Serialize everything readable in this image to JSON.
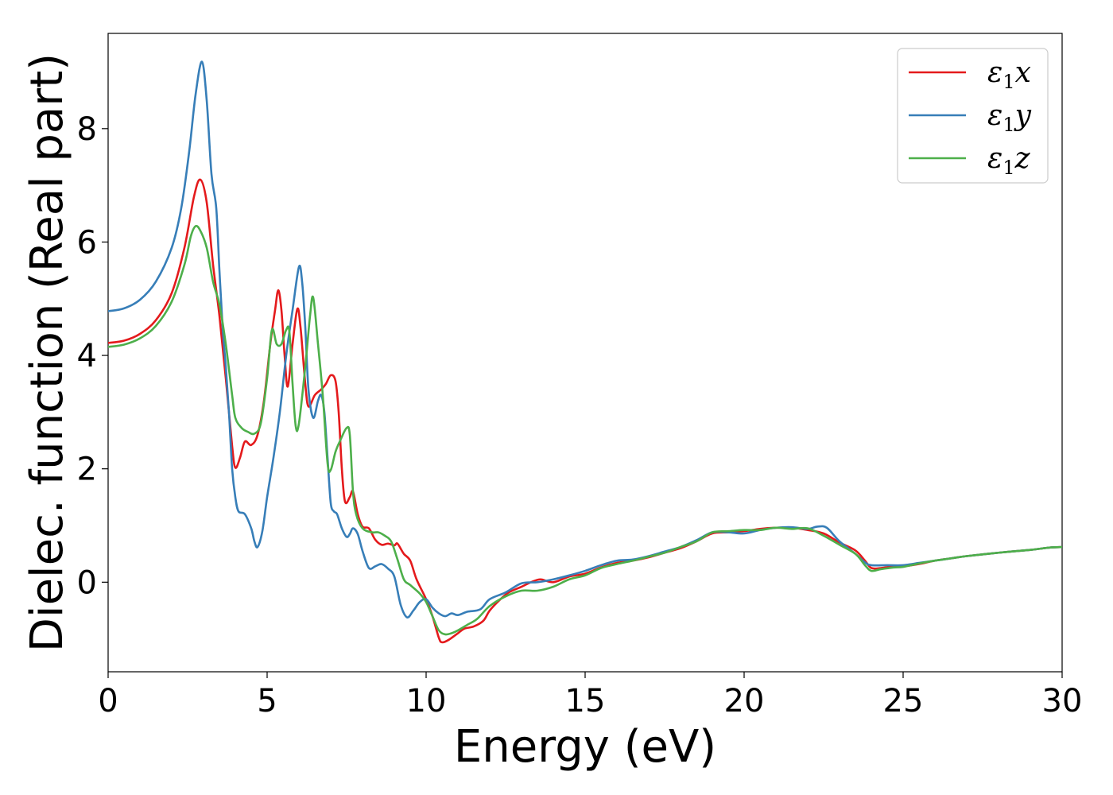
{
  "chart_data": {
    "type": "line",
    "title": "",
    "xlabel": "Energy (eV)",
    "ylabel": "Dielec. function (Real part)",
    "xlim": [
      0,
      30
    ],
    "ylim": [
      -1.58,
      9.68
    ],
    "xticks": [
      0,
      5,
      10,
      15,
      20,
      25,
      30
    ],
    "yticks": [
      0,
      2,
      4,
      6,
      8
    ],
    "grid": false,
    "legend_position": "top-right",
    "series": [
      {
        "name": "ε1x",
        "legend": {
          "base": "ε",
          "sub": "1",
          "axis": "x"
        },
        "color": "#e41a1c",
        "points": [
          [
            0,
            4.22
          ],
          [
            0.5,
            4.26
          ],
          [
            1.0,
            4.38
          ],
          [
            1.5,
            4.62
          ],
          [
            2.0,
            5.1
          ],
          [
            2.4,
            5.9
          ],
          [
            2.7,
            6.8
          ],
          [
            2.9,
            7.1
          ],
          [
            3.1,
            6.7
          ],
          [
            3.3,
            5.6
          ],
          [
            3.5,
            4.7
          ],
          [
            3.7,
            3.6
          ],
          [
            3.9,
            2.4
          ],
          [
            4.0,
            2.02
          ],
          [
            4.15,
            2.2
          ],
          [
            4.3,
            2.48
          ],
          [
            4.5,
            2.42
          ],
          [
            4.7,
            2.6
          ],
          [
            4.9,
            3.2
          ],
          [
            5.1,
            4.2
          ],
          [
            5.25,
            4.8
          ],
          [
            5.35,
            5.15
          ],
          [
            5.45,
            4.8
          ],
          [
            5.55,
            4.0
          ],
          [
            5.65,
            3.45
          ],
          [
            5.8,
            4.2
          ],
          [
            5.95,
            4.82
          ],
          [
            6.05,
            4.5
          ],
          [
            6.2,
            3.5
          ],
          [
            6.3,
            3.1
          ],
          [
            6.5,
            3.3
          ],
          [
            6.7,
            3.4
          ],
          [
            6.85,
            3.5
          ],
          [
            7.0,
            3.65
          ],
          [
            7.15,
            3.55
          ],
          [
            7.25,
            3.0
          ],
          [
            7.35,
            2.0
          ],
          [
            7.45,
            1.42
          ],
          [
            7.6,
            1.5
          ],
          [
            7.7,
            1.6
          ],
          [
            7.85,
            1.2
          ],
          [
            8.0,
            0.98
          ],
          [
            8.2,
            0.95
          ],
          [
            8.4,
            0.75
          ],
          [
            8.6,
            0.66
          ],
          [
            8.8,
            0.68
          ],
          [
            9.0,
            0.65
          ],
          [
            9.1,
            0.68
          ],
          [
            9.3,
            0.5
          ],
          [
            9.5,
            0.38
          ],
          [
            9.7,
            0.05
          ],
          [
            10.0,
            -0.3
          ],
          [
            10.2,
            -0.6
          ],
          [
            10.4,
            -0.98
          ],
          [
            10.5,
            -1.06
          ],
          [
            10.7,
            -1.02
          ],
          [
            11.0,
            -0.9
          ],
          [
            11.2,
            -0.82
          ],
          [
            11.5,
            -0.78
          ],
          [
            11.8,
            -0.68
          ],
          [
            12.0,
            -0.5
          ],
          [
            12.3,
            -0.32
          ],
          [
            12.6,
            -0.18
          ],
          [
            13.0,
            -0.08
          ],
          [
            13.3,
            0.0
          ],
          [
            13.6,
            0.05
          ],
          [
            14.0,
            0.0
          ],
          [
            14.5,
            0.1
          ],
          [
            15.0,
            0.15
          ],
          [
            15.5,
            0.26
          ],
          [
            16.0,
            0.34
          ],
          [
            16.5,
            0.38
          ],
          [
            17.0,
            0.44
          ],
          [
            17.5,
            0.52
          ],
          [
            18.0,
            0.6
          ],
          [
            18.5,
            0.72
          ],
          [
            19.0,
            0.86
          ],
          [
            19.5,
            0.88
          ],
          [
            20.0,
            0.9
          ],
          [
            20.5,
            0.94
          ],
          [
            21.0,
            0.96
          ],
          [
            21.5,
            0.96
          ],
          [
            22.0,
            0.92
          ],
          [
            22.5,
            0.86
          ],
          [
            23.0,
            0.7
          ],
          [
            23.5,
            0.56
          ],
          [
            23.8,
            0.38
          ],
          [
            24.0,
            0.25
          ],
          [
            24.3,
            0.25
          ],
          [
            24.7,
            0.28
          ],
          [
            25.0,
            0.28
          ],
          [
            25.5,
            0.32
          ],
          [
            26.0,
            0.38
          ],
          [
            26.5,
            0.42
          ],
          [
            27.0,
            0.46
          ],
          [
            28.0,
            0.52
          ],
          [
            29.0,
            0.57
          ],
          [
            29.6,
            0.61
          ],
          [
            30.0,
            0.62
          ]
        ]
      },
      {
        "name": "ε1y",
        "legend": {
          "base": "ε",
          "sub": "1",
          "axis": "y"
        },
        "color": "#377eb8",
        "points": [
          [
            0,
            4.78
          ],
          [
            0.5,
            4.83
          ],
          [
            1.0,
            4.98
          ],
          [
            1.5,
            5.3
          ],
          [
            2.0,
            5.9
          ],
          [
            2.3,
            6.6
          ],
          [
            2.55,
            7.6
          ],
          [
            2.75,
            8.6
          ],
          [
            2.95,
            9.18
          ],
          [
            3.1,
            8.5
          ],
          [
            3.25,
            7.2
          ],
          [
            3.4,
            6.6
          ],
          [
            3.5,
            5.5
          ],
          [
            3.6,
            4.5
          ],
          [
            3.7,
            3.8
          ],
          [
            3.8,
            3.0
          ],
          [
            3.9,
            2.0
          ],
          [
            4.0,
            1.5
          ],
          [
            4.1,
            1.25
          ],
          [
            4.3,
            1.2
          ],
          [
            4.5,
            0.95
          ],
          [
            4.6,
            0.72
          ],
          [
            4.7,
            0.62
          ],
          [
            4.85,
            0.9
          ],
          [
            5.0,
            1.5
          ],
          [
            5.2,
            2.2
          ],
          [
            5.4,
            3.0
          ],
          [
            5.6,
            4.0
          ],
          [
            5.8,
            4.8
          ],
          [
            6.0,
            5.56
          ],
          [
            6.1,
            5.3
          ],
          [
            6.2,
            4.5
          ],
          [
            6.3,
            3.4
          ],
          [
            6.45,
            2.9
          ],
          [
            6.6,
            3.2
          ],
          [
            6.7,
            3.3
          ],
          [
            6.8,
            3.0
          ],
          [
            6.9,
            2.2
          ],
          [
            7.0,
            1.4
          ],
          [
            7.1,
            1.25
          ],
          [
            7.2,
            1.2
          ],
          [
            7.35,
            0.95
          ],
          [
            7.5,
            0.8
          ],
          [
            7.6,
            0.85
          ],
          [
            7.7,
            0.95
          ],
          [
            7.85,
            0.85
          ],
          [
            8.0,
            0.55
          ],
          [
            8.2,
            0.25
          ],
          [
            8.4,
            0.28
          ],
          [
            8.6,
            0.32
          ],
          [
            8.8,
            0.24
          ],
          [
            9.0,
            0.1
          ],
          [
            9.2,
            -0.4
          ],
          [
            9.4,
            -0.62
          ],
          [
            9.6,
            -0.5
          ],
          [
            9.8,
            -0.35
          ],
          [
            10.0,
            -0.3
          ],
          [
            10.2,
            -0.45
          ],
          [
            10.4,
            -0.55
          ],
          [
            10.6,
            -0.6
          ],
          [
            10.8,
            -0.55
          ],
          [
            11.0,
            -0.58
          ],
          [
            11.3,
            -0.52
          ],
          [
            11.7,
            -0.48
          ],
          [
            12.0,
            -0.3
          ],
          [
            12.5,
            -0.18
          ],
          [
            13.0,
            -0.02
          ],
          [
            13.5,
            0.0
          ],
          [
            14.0,
            0.05
          ],
          [
            14.5,
            0.12
          ],
          [
            15.0,
            0.2
          ],
          [
            15.5,
            0.3
          ],
          [
            16.0,
            0.38
          ],
          [
            16.5,
            0.4
          ],
          [
            17.0,
            0.46
          ],
          [
            17.5,
            0.54
          ],
          [
            18.0,
            0.62
          ],
          [
            18.5,
            0.74
          ],
          [
            19.0,
            0.88
          ],
          [
            19.5,
            0.88
          ],
          [
            20.0,
            0.86
          ],
          [
            20.5,
            0.92
          ],
          [
            21.0,
            0.96
          ],
          [
            21.5,
            0.97
          ],
          [
            22.0,
            0.94
          ],
          [
            22.3,
            0.98
          ],
          [
            22.6,
            0.96
          ],
          [
            23.0,
            0.72
          ],
          [
            23.5,
            0.5
          ],
          [
            23.8,
            0.35
          ],
          [
            24.0,
            0.3
          ],
          [
            24.5,
            0.3
          ],
          [
            25.0,
            0.3
          ],
          [
            25.5,
            0.34
          ],
          [
            26.0,
            0.38
          ],
          [
            26.5,
            0.42
          ],
          [
            27.0,
            0.46
          ],
          [
            28.0,
            0.52
          ],
          [
            29.0,
            0.57
          ],
          [
            29.6,
            0.61
          ],
          [
            30.0,
            0.62
          ]
        ]
      },
      {
        "name": "ε1z",
        "legend": {
          "base": "ε",
          "sub": "1",
          "axis": "z"
        },
        "color": "#4daf4a",
        "points": [
          [
            0,
            4.15
          ],
          [
            0.5,
            4.19
          ],
          [
            1.0,
            4.3
          ],
          [
            1.5,
            4.52
          ],
          [
            2.0,
            4.95
          ],
          [
            2.4,
            5.6
          ],
          [
            2.6,
            6.1
          ],
          [
            2.75,
            6.28
          ],
          [
            2.9,
            6.2
          ],
          [
            3.1,
            5.9
          ],
          [
            3.3,
            5.3
          ],
          [
            3.5,
            4.9
          ],
          [
            3.7,
            4.2
          ],
          [
            3.9,
            3.3
          ],
          [
            4.0,
            2.9
          ],
          [
            4.2,
            2.72
          ],
          [
            4.4,
            2.65
          ],
          [
            4.6,
            2.62
          ],
          [
            4.8,
            2.8
          ],
          [
            5.0,
            3.6
          ],
          [
            5.15,
            4.45
          ],
          [
            5.3,
            4.2
          ],
          [
            5.45,
            4.2
          ],
          [
            5.6,
            4.45
          ],
          [
            5.7,
            4.42
          ],
          [
            5.8,
            3.5
          ],
          [
            5.9,
            2.75
          ],
          [
            6.0,
            2.8
          ],
          [
            6.2,
            3.8
          ],
          [
            6.35,
            4.7
          ],
          [
            6.45,
            5.02
          ],
          [
            6.6,
            4.2
          ],
          [
            6.75,
            3.3
          ],
          [
            6.9,
            2.1
          ],
          [
            7.0,
            1.98
          ],
          [
            7.15,
            2.3
          ],
          [
            7.3,
            2.5
          ],
          [
            7.5,
            2.72
          ],
          [
            7.6,
            2.6
          ],
          [
            7.7,
            1.6
          ],
          [
            7.8,
            1.2
          ],
          [
            8.0,
            0.95
          ],
          [
            8.3,
            0.88
          ],
          [
            8.5,
            0.88
          ],
          [
            8.7,
            0.82
          ],
          [
            8.9,
            0.72
          ],
          [
            9.1,
            0.4
          ],
          [
            9.3,
            0.05
          ],
          [
            9.5,
            -0.05
          ],
          [
            9.8,
            -0.2
          ],
          [
            10.0,
            -0.35
          ],
          [
            10.2,
            -0.6
          ],
          [
            10.4,
            -0.85
          ],
          [
            10.6,
            -0.92
          ],
          [
            10.8,
            -0.9
          ],
          [
            11.0,
            -0.85
          ],
          [
            11.3,
            -0.75
          ],
          [
            11.6,
            -0.65
          ],
          [
            12.0,
            -0.42
          ],
          [
            12.5,
            -0.25
          ],
          [
            13.0,
            -0.15
          ],
          [
            13.5,
            -0.15
          ],
          [
            14.0,
            -0.08
          ],
          [
            14.5,
            0.05
          ],
          [
            15.0,
            0.12
          ],
          [
            15.5,
            0.25
          ],
          [
            16.0,
            0.32
          ],
          [
            16.5,
            0.38
          ],
          [
            17.0,
            0.45
          ],
          [
            17.5,
            0.52
          ],
          [
            18.0,
            0.62
          ],
          [
            18.5,
            0.72
          ],
          [
            19.0,
            0.88
          ],
          [
            19.5,
            0.9
          ],
          [
            20.0,
            0.92
          ],
          [
            20.5,
            0.92
          ],
          [
            21.0,
            0.96
          ],
          [
            21.5,
            0.94
          ],
          [
            22.0,
            0.95
          ],
          [
            22.5,
            0.82
          ],
          [
            23.0,
            0.66
          ],
          [
            23.5,
            0.5
          ],
          [
            23.8,
            0.3
          ],
          [
            24.0,
            0.2
          ],
          [
            24.3,
            0.23
          ],
          [
            24.7,
            0.26
          ],
          [
            25.0,
            0.27
          ],
          [
            25.5,
            0.33
          ],
          [
            26.0,
            0.38
          ],
          [
            26.5,
            0.42
          ],
          [
            27.0,
            0.46
          ],
          [
            28.0,
            0.52
          ],
          [
            29.0,
            0.57
          ],
          [
            29.6,
            0.61
          ],
          [
            30.0,
            0.62
          ]
        ]
      }
    ]
  }
}
